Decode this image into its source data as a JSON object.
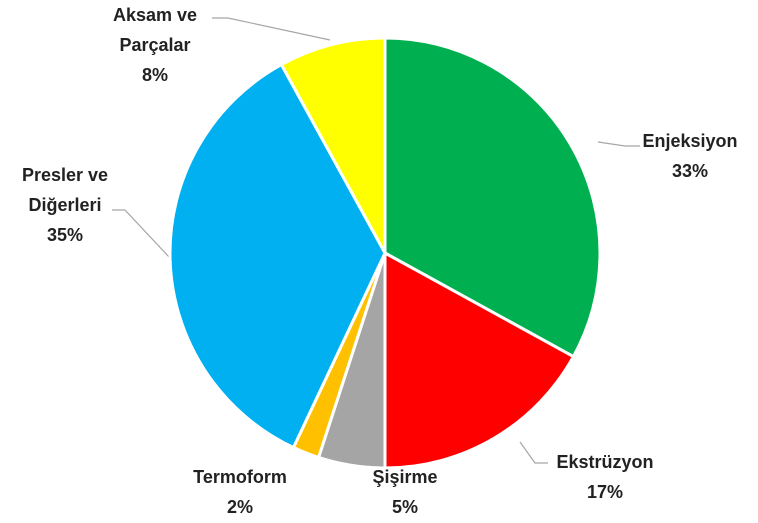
{
  "chart_data": {
    "type": "pie",
    "categories": [
      "Enjeksiyon",
      "Ekstrüzyon",
      "Şişirme",
      "Termoform",
      "Presler ve Diğerleri",
      "Aksam ve Parçalar"
    ],
    "values": [
      33,
      17,
      5,
      2,
      35,
      8
    ],
    "value_labels": [
      "33%",
      "17%",
      "5%",
      "2%",
      "35%",
      "8%"
    ],
    "colors": [
      "#00b050",
      "#ff0000",
      "#a5a5a5",
      "#ffc000",
      "#00b0f0",
      "#ffff00"
    ]
  }
}
